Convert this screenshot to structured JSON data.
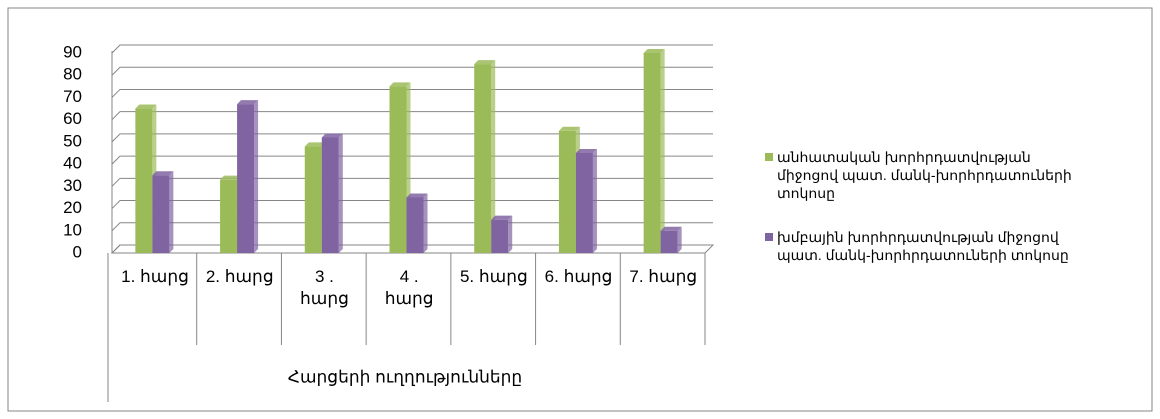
{
  "chart_data": {
    "type": "bar",
    "categories": [
      "1. հարց",
      "2. հարց",
      "3 . հարց",
      "4 . հարց",
      "5. հարց",
      "6. հարց",
      "7. հարց"
    ],
    "x_label": "Հարցերի ուղղությունները",
    "series": [
      {
        "name": "անհատական խորհրդատվության միջոցով պատ. մանկ-խորհրդատուների տոկոսը",
        "color": "#9bbb59",
        "values": [
          65,
          33,
          48,
          75,
          85,
          55,
          90
        ]
      },
      {
        "name": "խմբային խորհրդատվության միջոցով պատ. մանկ-խորհրդատուների տոկոսը",
        "color": "#8064a2",
        "values": [
          35,
          67,
          52,
          25,
          15,
          45,
          10
        ]
      }
    ],
    "ylim": [
      0,
      90
    ],
    "yticks": [
      0,
      10,
      20,
      30,
      40,
      50,
      60,
      70,
      80,
      90
    ],
    "grid": true,
    "legend": "right"
  }
}
